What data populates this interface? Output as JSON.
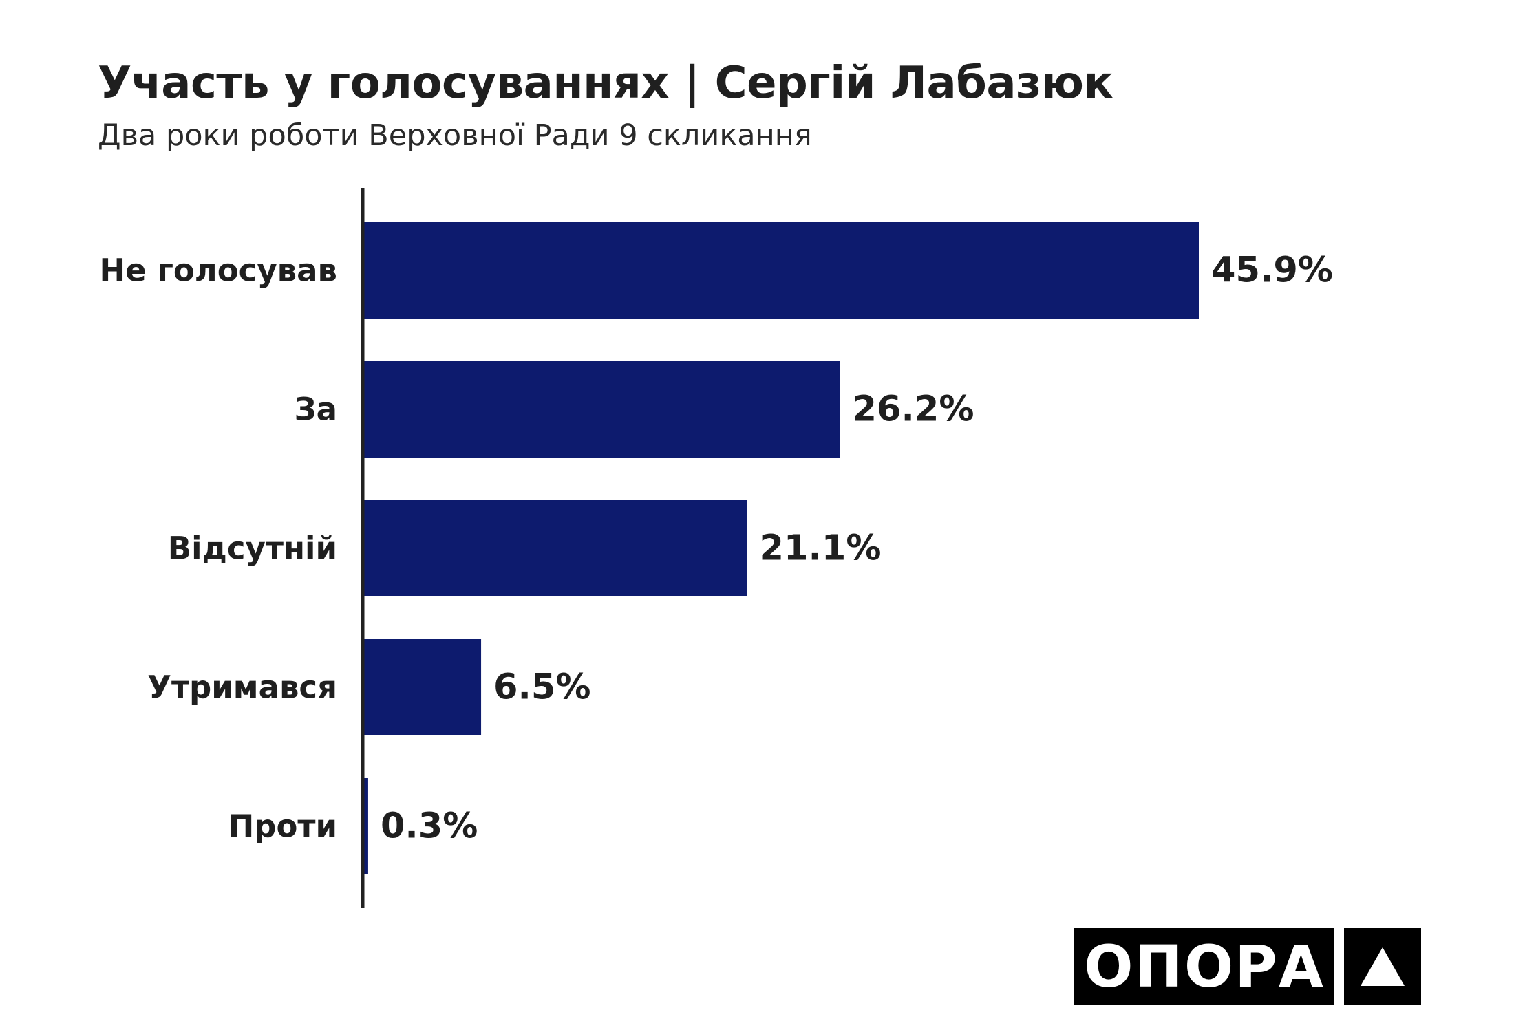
{
  "header": {
    "title": "Участь у голосуваннях | Сергій Лабазюк",
    "subtitle": "Два роки роботи Верховної Ради 9 скликання"
  },
  "logo": {
    "text": "ОПОРА",
    "icon": "triangle-icon"
  },
  "colors": {
    "bar": "#0d1b6e",
    "axis": "#222222",
    "text": "#1f1f1f"
  },
  "chart_data": {
    "type": "bar",
    "orientation": "horizontal",
    "categories": [
      "Не голосував",
      "За",
      "Відсутній",
      "Утримався",
      "Проти"
    ],
    "values": [
      45.9,
      26.2,
      21.1,
      6.5,
      0.3
    ],
    "value_labels": [
      "45.9%",
      "26.2%",
      "21.1%",
      "6.5%",
      "0.3%"
    ],
    "unit": "%",
    "title": "Участь у голосуваннях | Сергій Лабазюк",
    "subtitle": "Два роки роботи Верховної Ради 9 скликання",
    "xlabel": "",
    "ylabel": "",
    "xlim": [
      0,
      45.9
    ],
    "grid": false,
    "legend": "none"
  }
}
